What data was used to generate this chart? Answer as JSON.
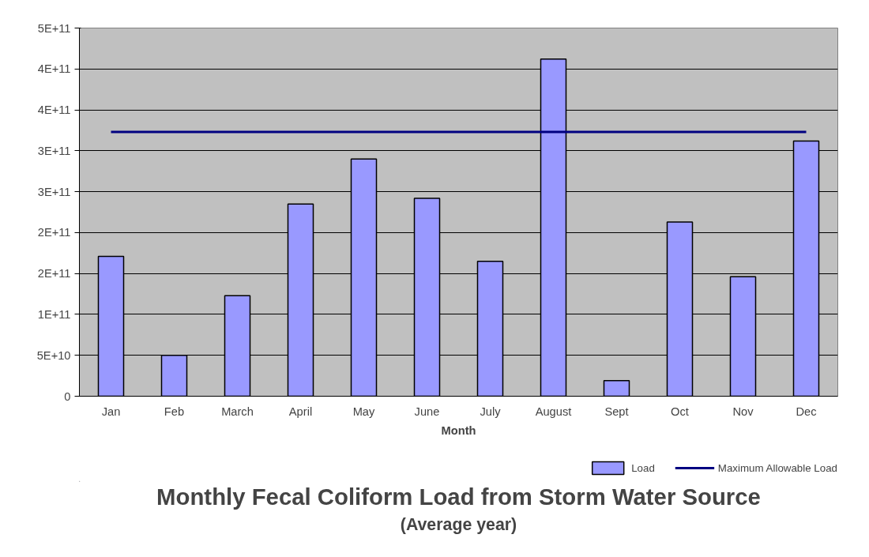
{
  "chart_data": {
    "type": "bar",
    "title": "Monthly Fecal Coliform Load from Storm Water Source",
    "subtitle": "(Average year)",
    "xlabel": "Month",
    "categories": [
      "Jan",
      "Feb",
      "March",
      "April",
      "May",
      "June",
      "July",
      "August",
      "Sept",
      "Oct",
      "Nov",
      "Dec"
    ],
    "series": [
      {
        "name": "Load",
        "color": "#9999ff",
        "values": [
          171000000000.0,
          50000000000.0,
          123000000000.0,
          235000000000.0,
          290000000000.0,
          242000000000.0,
          165000000000.0,
          412000000000.0,
          19000000000.0,
          213000000000.0,
          146000000000.0,
          312000000000.0
        ]
      },
      {
        "name": "Maximum Allowable Load",
        "type": "line",
        "color": "#000080",
        "values": [
          323000000000.0,
          323000000000.0,
          323000000000.0,
          323000000000.0,
          323000000000.0,
          323000000000.0,
          323000000000.0,
          323000000000.0,
          323000000000.0,
          323000000000.0,
          323000000000.0,
          323000000000.0
        ]
      }
    ],
    "ylim": [
      0,
      450000000000.0
    ],
    "yticks": [
      0,
      {
        "value": 50000000000.0,
        "label": "5E+10"
      },
      {
        "value": 100000000000.0,
        "label": "1E+11"
      },
      {
        "value": 150000000000.0,
        "label": "2E+11"
      },
      {
        "value": 200000000000.0,
        "label": "2E+11"
      },
      {
        "value": 250000000000.0,
        "label": "3E+11"
      },
      {
        "value": 300000000000.0,
        "label": "3E+11"
      },
      {
        "value": 350000000000.0,
        "label": "4E+11"
      },
      {
        "value": 400000000000.0,
        "label": "4E+11"
      },
      {
        "value": 450000000000.0,
        "label": "5E+11"
      }
    ],
    "grid": "y",
    "legend": "bottom right"
  }
}
